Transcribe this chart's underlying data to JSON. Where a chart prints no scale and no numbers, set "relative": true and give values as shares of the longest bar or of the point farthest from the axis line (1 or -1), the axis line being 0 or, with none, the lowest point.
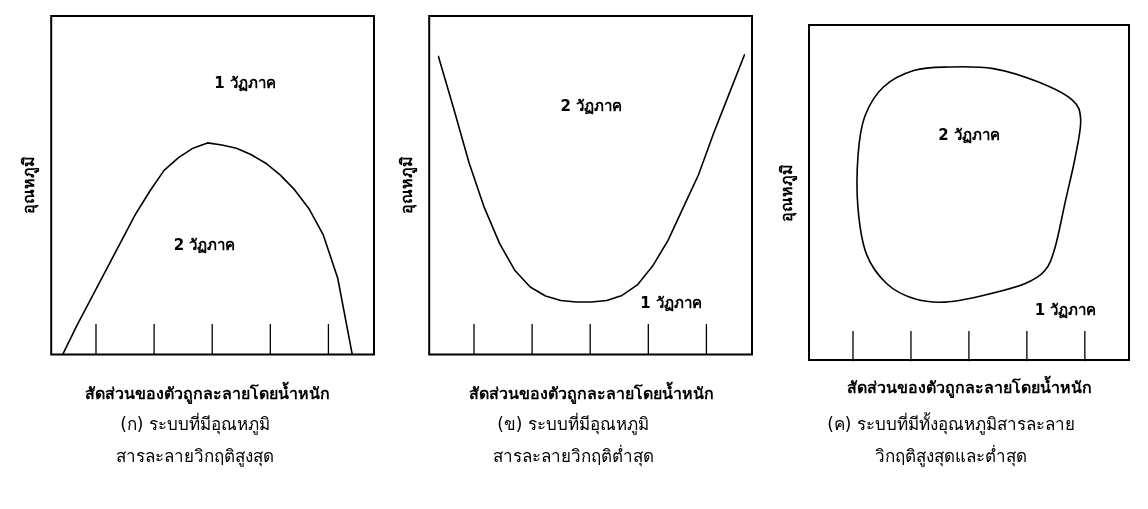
{
  "chart_data": [
    {
      "type": "line",
      "relative": true,
      "title": "(ก) ระบบที่มีอุณหภูมิ\nสารละลายวิกฤติสูงสุด",
      "xlabel": "สัดส่วนของตัวถูกละลายโดยน้ำหนัก",
      "ylabel": "อุณหภูมิ",
      "annotations": [
        "1 วัฏภาค",
        "2 วัฏภาค"
      ],
      "marker": "none",
      "grid": false,
      "legend": false,
      "categories": [
        null,
        null,
        null,
        null,
        null,
        null,
        null,
        null,
        null,
        null,
        null,
        null,
        null,
        null,
        null,
        null,
        null,
        null,
        null,
        null,
        null
      ],
      "series": [
        {
          "color": "#000000",
          "values": [
            0,
            0.14,
            0.27,
            0.4,
            0.53,
            0.66,
            0.77,
            0.87,
            0.93,
            0.975,
            1,
            0.99,
            0.975,
            0.945,
            0.905,
            0.85,
            0.78,
            0.69,
            0.565,
            0.36,
            0
          ]
        }
      ]
    },
    {
      "type": "line",
      "relative": true,
      "title": "(ข) ระบบที่มีอุณหภูมิ\nสารละลายวิกฤติต่ำสุด",
      "xlabel": "สัดส่วนของตัวถูกละลายโดยน้ำหนัก",
      "ylabel": "อุณหภูมิ",
      "annotations": [
        "2 วัฏภาค",
        "1 วัฏภาค"
      ],
      "marker": "none",
      "grid": false,
      "legend": false,
      "categories": [
        null,
        null,
        null,
        null,
        null,
        null,
        null,
        null,
        null,
        null,
        null,
        null,
        null,
        null,
        null,
        null,
        null,
        null,
        null,
        null,
        null
      ],
      "series": [
        {
          "color": "#000000",
          "values": [
            0.995,
            0.82,
            0.64,
            0.49,
            0.37,
            0.28,
            0.225,
            0.195,
            0.18,
            0.175,
            0.175,
            0.18,
            0.197,
            0.232,
            0.295,
            0.38,
            0.49,
            0.6,
            0.74,
            0.87,
            1
          ]
        }
      ]
    },
    {
      "type": "other",
      "title": "(ค) ระบบที่มีทั้งอุณหภูมิสารละลาย\nวิกฤติสูงสุดและต่ำสุด",
      "xlabel": "สัดส่วนของตัวถูกละลายโดยน้ำหนัก",
      "ylabel": "อุณหภูมิ",
      "annotations": [
        "2 วัฏภาค",
        "1 วัฏภาค"
      ]
    }
  ]
}
